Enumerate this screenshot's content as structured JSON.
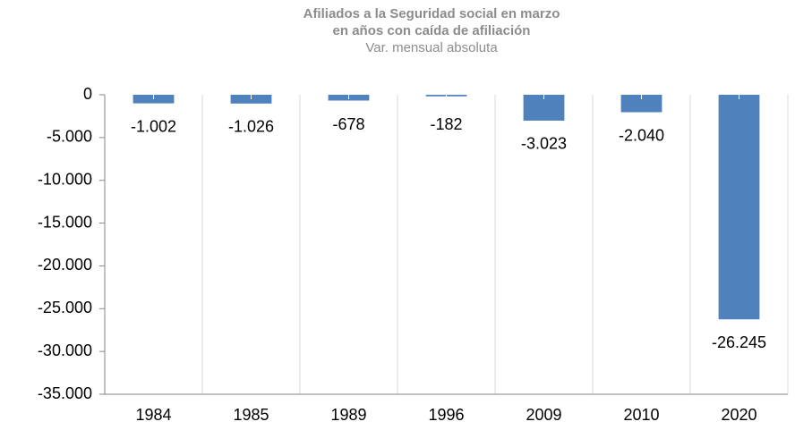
{
  "chart_data": {
    "type": "bar",
    "title": [
      "Afiliados a la Seguridad social en marzo",
      "en años con caída de afiliación"
    ],
    "subtitle": "Var. mensual absoluta",
    "categories": [
      "1984",
      "1985",
      "1989",
      "1996",
      "2009",
      "2010",
      "2020"
    ],
    "values": [
      -1002,
      -1026,
      -678,
      -182,
      -3023,
      -2040,
      -26245
    ],
    "value_labels": [
      "-1.002",
      "-1.026",
      "-678",
      "-182",
      "-3.023",
      "-2.040",
      "-26.245"
    ],
    "color": "#4f81bd",
    "ylim": [
      -35000,
      0
    ],
    "yticks": [
      0,
      {
        "value": -5000,
        "label": "-5.000"
      },
      {
        "value": -10000,
        "label": "-10.000"
      },
      {
        "value": -15000,
        "label": "-15.000"
      },
      {
        "value": -20000,
        "label": "-20.000"
      },
      {
        "value": -25000,
        "label": "-25.000"
      },
      {
        "value": -30000,
        "label": "-30.000"
      },
      {
        "value": -35000,
        "label": "-35.000"
      }
    ]
  }
}
